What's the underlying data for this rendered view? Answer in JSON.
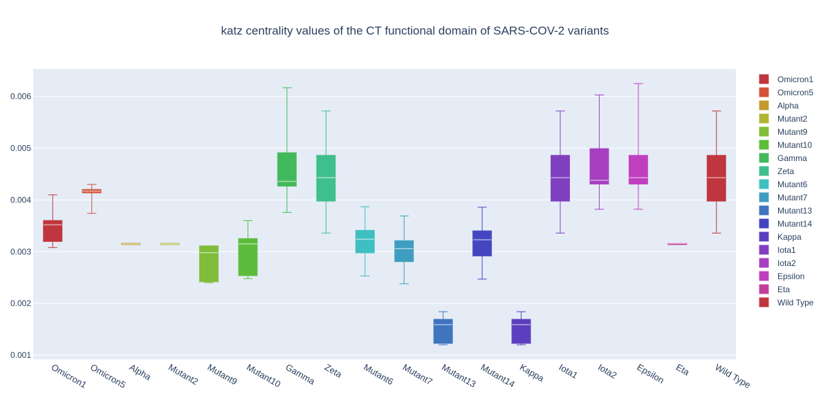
{
  "chart_data": {
    "type": "box",
    "title": "katz centrality values of the CT functional domain of SARS-COV-2 variants",
    "xlabel": "",
    "ylabel": "",
    "ylim": [
      0.00092,
      0.00653
    ],
    "yticks": [
      0.001,
      0.002,
      0.003,
      0.004,
      0.005,
      0.006
    ],
    "ytick_labels": [
      "0.001",
      "0.002",
      "0.003",
      "0.004",
      "0.005",
      "0.006"
    ],
    "grid": true,
    "legend_position": "right",
    "categories": [
      "Omicron1",
      "Omicron5",
      "Alpha",
      "Mutant2",
      "Mutant9",
      "Mutant10",
      "Gamma",
      "Zeta",
      "Mutant6",
      "Mutant7",
      "Mutant13",
      "Mutant14",
      "Kappa",
      "Iota1",
      "Iota2",
      "Epsilon",
      "Eta",
      "Wild Type"
    ],
    "series": [
      {
        "name": "Omicron1",
        "color": "#c0363e",
        "min": 0.00308,
        "q1": 0.0032,
        "median": 0.00352,
        "q3": 0.0036,
        "max": 0.0041
      },
      {
        "name": "Omicron5",
        "color": "#d1533a",
        "min": 0.00374,
        "q1": 0.00414,
        "median": 0.00417,
        "q3": 0.0042,
        "max": 0.0043
      },
      {
        "name": "Alpha",
        "color": "#c29a2f",
        "min": 0.00315,
        "q1": 0.00315,
        "median": 0.00315,
        "q3": 0.00316,
        "max": 0.00316
      },
      {
        "name": "Mutant2",
        "color": "#b1b534",
        "min": 0.00315,
        "q1": 0.00315,
        "median": 0.00315,
        "q3": 0.00316,
        "max": 0.00316
      },
      {
        "name": "Mutant9",
        "color": "#7fbd3b",
        "min": 0.0024,
        "q1": 0.00242,
        "median": 0.00298,
        "q3": 0.00311,
        "max": 0.00311
      },
      {
        "name": "Mutant10",
        "color": "#5bbd3b",
        "min": 0.00248,
        "q1": 0.00254,
        "median": 0.00315,
        "q3": 0.00325,
        "max": 0.0036
      },
      {
        "name": "Gamma",
        "color": "#42b95a",
        "min": 0.00376,
        "q1": 0.00427,
        "median": 0.00436,
        "q3": 0.00491,
        "max": 0.00617
      },
      {
        "name": "Zeta",
        "color": "#3fbf8e",
        "min": 0.00336,
        "q1": 0.00398,
        "median": 0.00443,
        "q3": 0.00486,
        "max": 0.00572
      },
      {
        "name": "Mutant6",
        "color": "#3fbfc1",
        "min": 0.00253,
        "q1": 0.00298,
        "median": 0.00324,
        "q3": 0.00341,
        "max": 0.00387
      },
      {
        "name": "Mutant7",
        "color": "#3f9ebf",
        "min": 0.00238,
        "q1": 0.00281,
        "median": 0.00306,
        "q3": 0.00321,
        "max": 0.00369
      },
      {
        "name": "Mutant13",
        "color": "#3f74bf",
        "min": 0.0012,
        "q1": 0.00123,
        "median": 0.00159,
        "q3": 0.00169,
        "max": 0.00184
      },
      {
        "name": "Mutant14",
        "color": "#4446c0",
        "min": 0.00247,
        "q1": 0.00292,
        "median": 0.00323,
        "q3": 0.0034,
        "max": 0.00386
      },
      {
        "name": "Kappa",
        "color": "#5c3fbf",
        "min": 0.0012,
        "q1": 0.00123,
        "median": 0.00159,
        "q3": 0.00169,
        "max": 0.00184
      },
      {
        "name": "Iota1",
        "color": "#7f3fbf",
        "min": 0.00336,
        "q1": 0.00398,
        "median": 0.00443,
        "q3": 0.00486,
        "max": 0.00572
      },
      {
        "name": "Iota2",
        "color": "#a63fbf",
        "min": 0.00382,
        "q1": 0.00431,
        "median": 0.00438,
        "q3": 0.00499,
        "max": 0.00603
      },
      {
        "name": "Epsilon",
        "color": "#bf3fbf",
        "min": 0.00382,
        "q1": 0.00431,
        "median": 0.00443,
        "q3": 0.00486,
        "max": 0.00625
      },
      {
        "name": "Eta",
        "color": "#c13f9a",
        "min": 0.00316,
        "q1": 0.00316,
        "median": 0.00316,
        "q3": 0.00316,
        "max": 0.00316
      },
      {
        "name": "Wild Type",
        "color": "#c0363e",
        "min": 0.00336,
        "q1": 0.00398,
        "median": 0.00443,
        "q3": 0.00486,
        "max": 0.00572
      }
    ]
  }
}
